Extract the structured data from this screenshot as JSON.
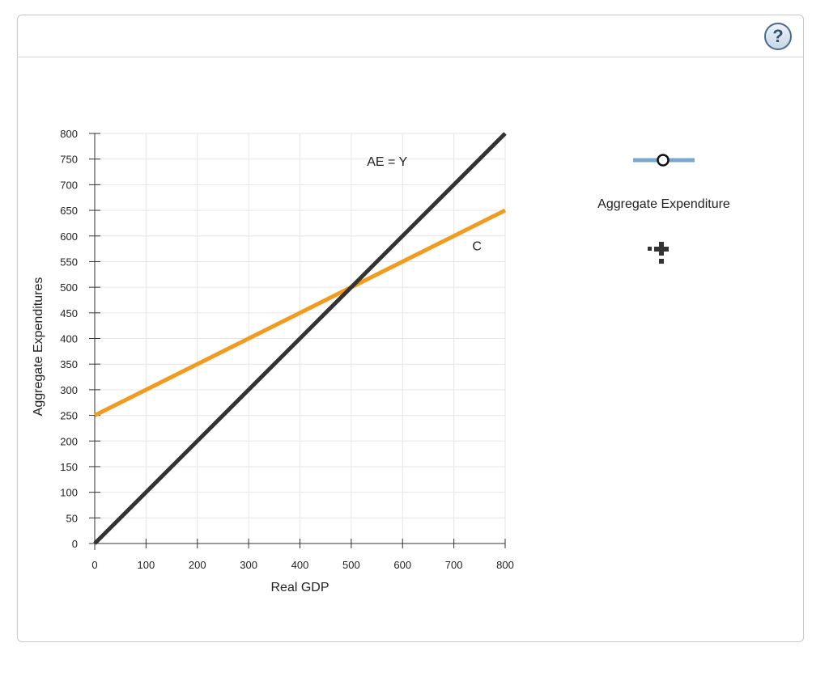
{
  "help": {
    "label": "?"
  },
  "legend": {
    "label": "Aggregate Expenditure",
    "swatch_color": "#7ba7cc",
    "tool_icon": "drag-crosshair-icon"
  },
  "chart_data": {
    "type": "line",
    "xlabel": "Real GDP",
    "ylabel": "Aggregate Expenditures",
    "xlim": [
      0,
      800
    ],
    "ylim": [
      0,
      800
    ],
    "x_ticks": [
      0,
      100,
      200,
      300,
      400,
      500,
      600,
      700,
      800
    ],
    "y_ticks": [
      0,
      50,
      100,
      150,
      200,
      250,
      300,
      350,
      400,
      450,
      500,
      550,
      600,
      650,
      700,
      750,
      800
    ],
    "grid": true,
    "series": [
      {
        "name": "AE = Y",
        "color": "#333333",
        "x": [
          0,
          800
        ],
        "y": [
          0,
          800
        ]
      },
      {
        "name": "C",
        "color": "#f29b1d",
        "x": [
          0,
          800
        ],
        "y": [
          250,
          650
        ]
      }
    ],
    "annotations": [
      {
        "text": "AE = Y",
        "x": 570,
        "y": 745
      },
      {
        "text": "C",
        "x": 745,
        "y": 580
      }
    ]
  }
}
